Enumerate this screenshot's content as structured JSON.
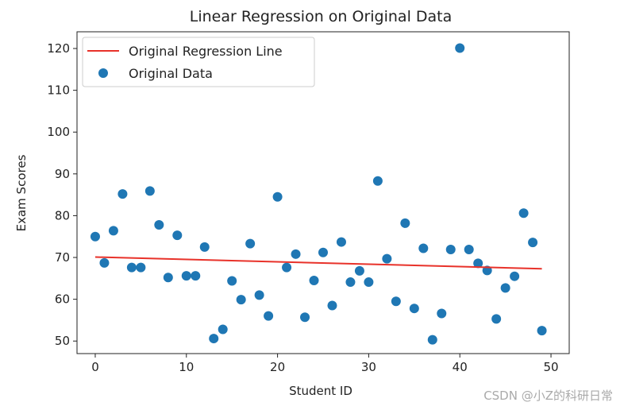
{
  "chart_data": {
    "type": "scatter",
    "title": "Linear Regression on Original Data",
    "xlabel": "Student ID",
    "ylabel": "Exam Scores",
    "xlim": [
      -2,
      52
    ],
    "ylim": [
      47,
      124
    ],
    "xticks": [
      0,
      10,
      20,
      30,
      40,
      50
    ],
    "yticks": [
      50,
      60,
      70,
      80,
      90,
      100,
      110,
      120
    ],
    "grid": false,
    "legend_position": "top-left",
    "series": [
      {
        "name": "Original Regression Line",
        "kind": "line",
        "color": "#e8322a",
        "x": [
          0,
          49
        ],
        "y": [
          70.1,
          67.3
        ]
      },
      {
        "name": "Original Data",
        "kind": "scatter",
        "color": "#1f77b4",
        "x": [
          0,
          1,
          2,
          3,
          4,
          5,
          6,
          7,
          8,
          9,
          10,
          11,
          12,
          13,
          14,
          15,
          16,
          17,
          18,
          19,
          20,
          21,
          22,
          23,
          24,
          25,
          26,
          27,
          28,
          29,
          30,
          31,
          32,
          33,
          34,
          35,
          36,
          37,
          38,
          39,
          40,
          41,
          42,
          43,
          44,
          45,
          46,
          47,
          48,
          49
        ],
        "y": [
          75.0,
          68.7,
          76.4,
          85.2,
          67.6,
          67.6,
          85.9,
          77.8,
          65.2,
          75.3,
          65.6,
          65.6,
          72.5,
          50.6,
          52.8,
          64.4,
          59.9,
          73.3,
          61.0,
          56.0,
          84.5,
          67.6,
          70.8,
          55.7,
          64.5,
          71.2,
          58.5,
          73.7,
          64.1,
          66.8,
          64.1,
          88.3,
          69.7,
          59.5,
          78.2,
          57.8,
          72.2,
          50.3,
          56.6,
          71.9,
          120.1,
          71.9,
          68.6,
          66.9,
          55.3,
          62.7,
          65.5,
          80.6,
          73.6,
          52.5
        ]
      }
    ]
  },
  "watermark": "CSDN @小Z的科研日常"
}
